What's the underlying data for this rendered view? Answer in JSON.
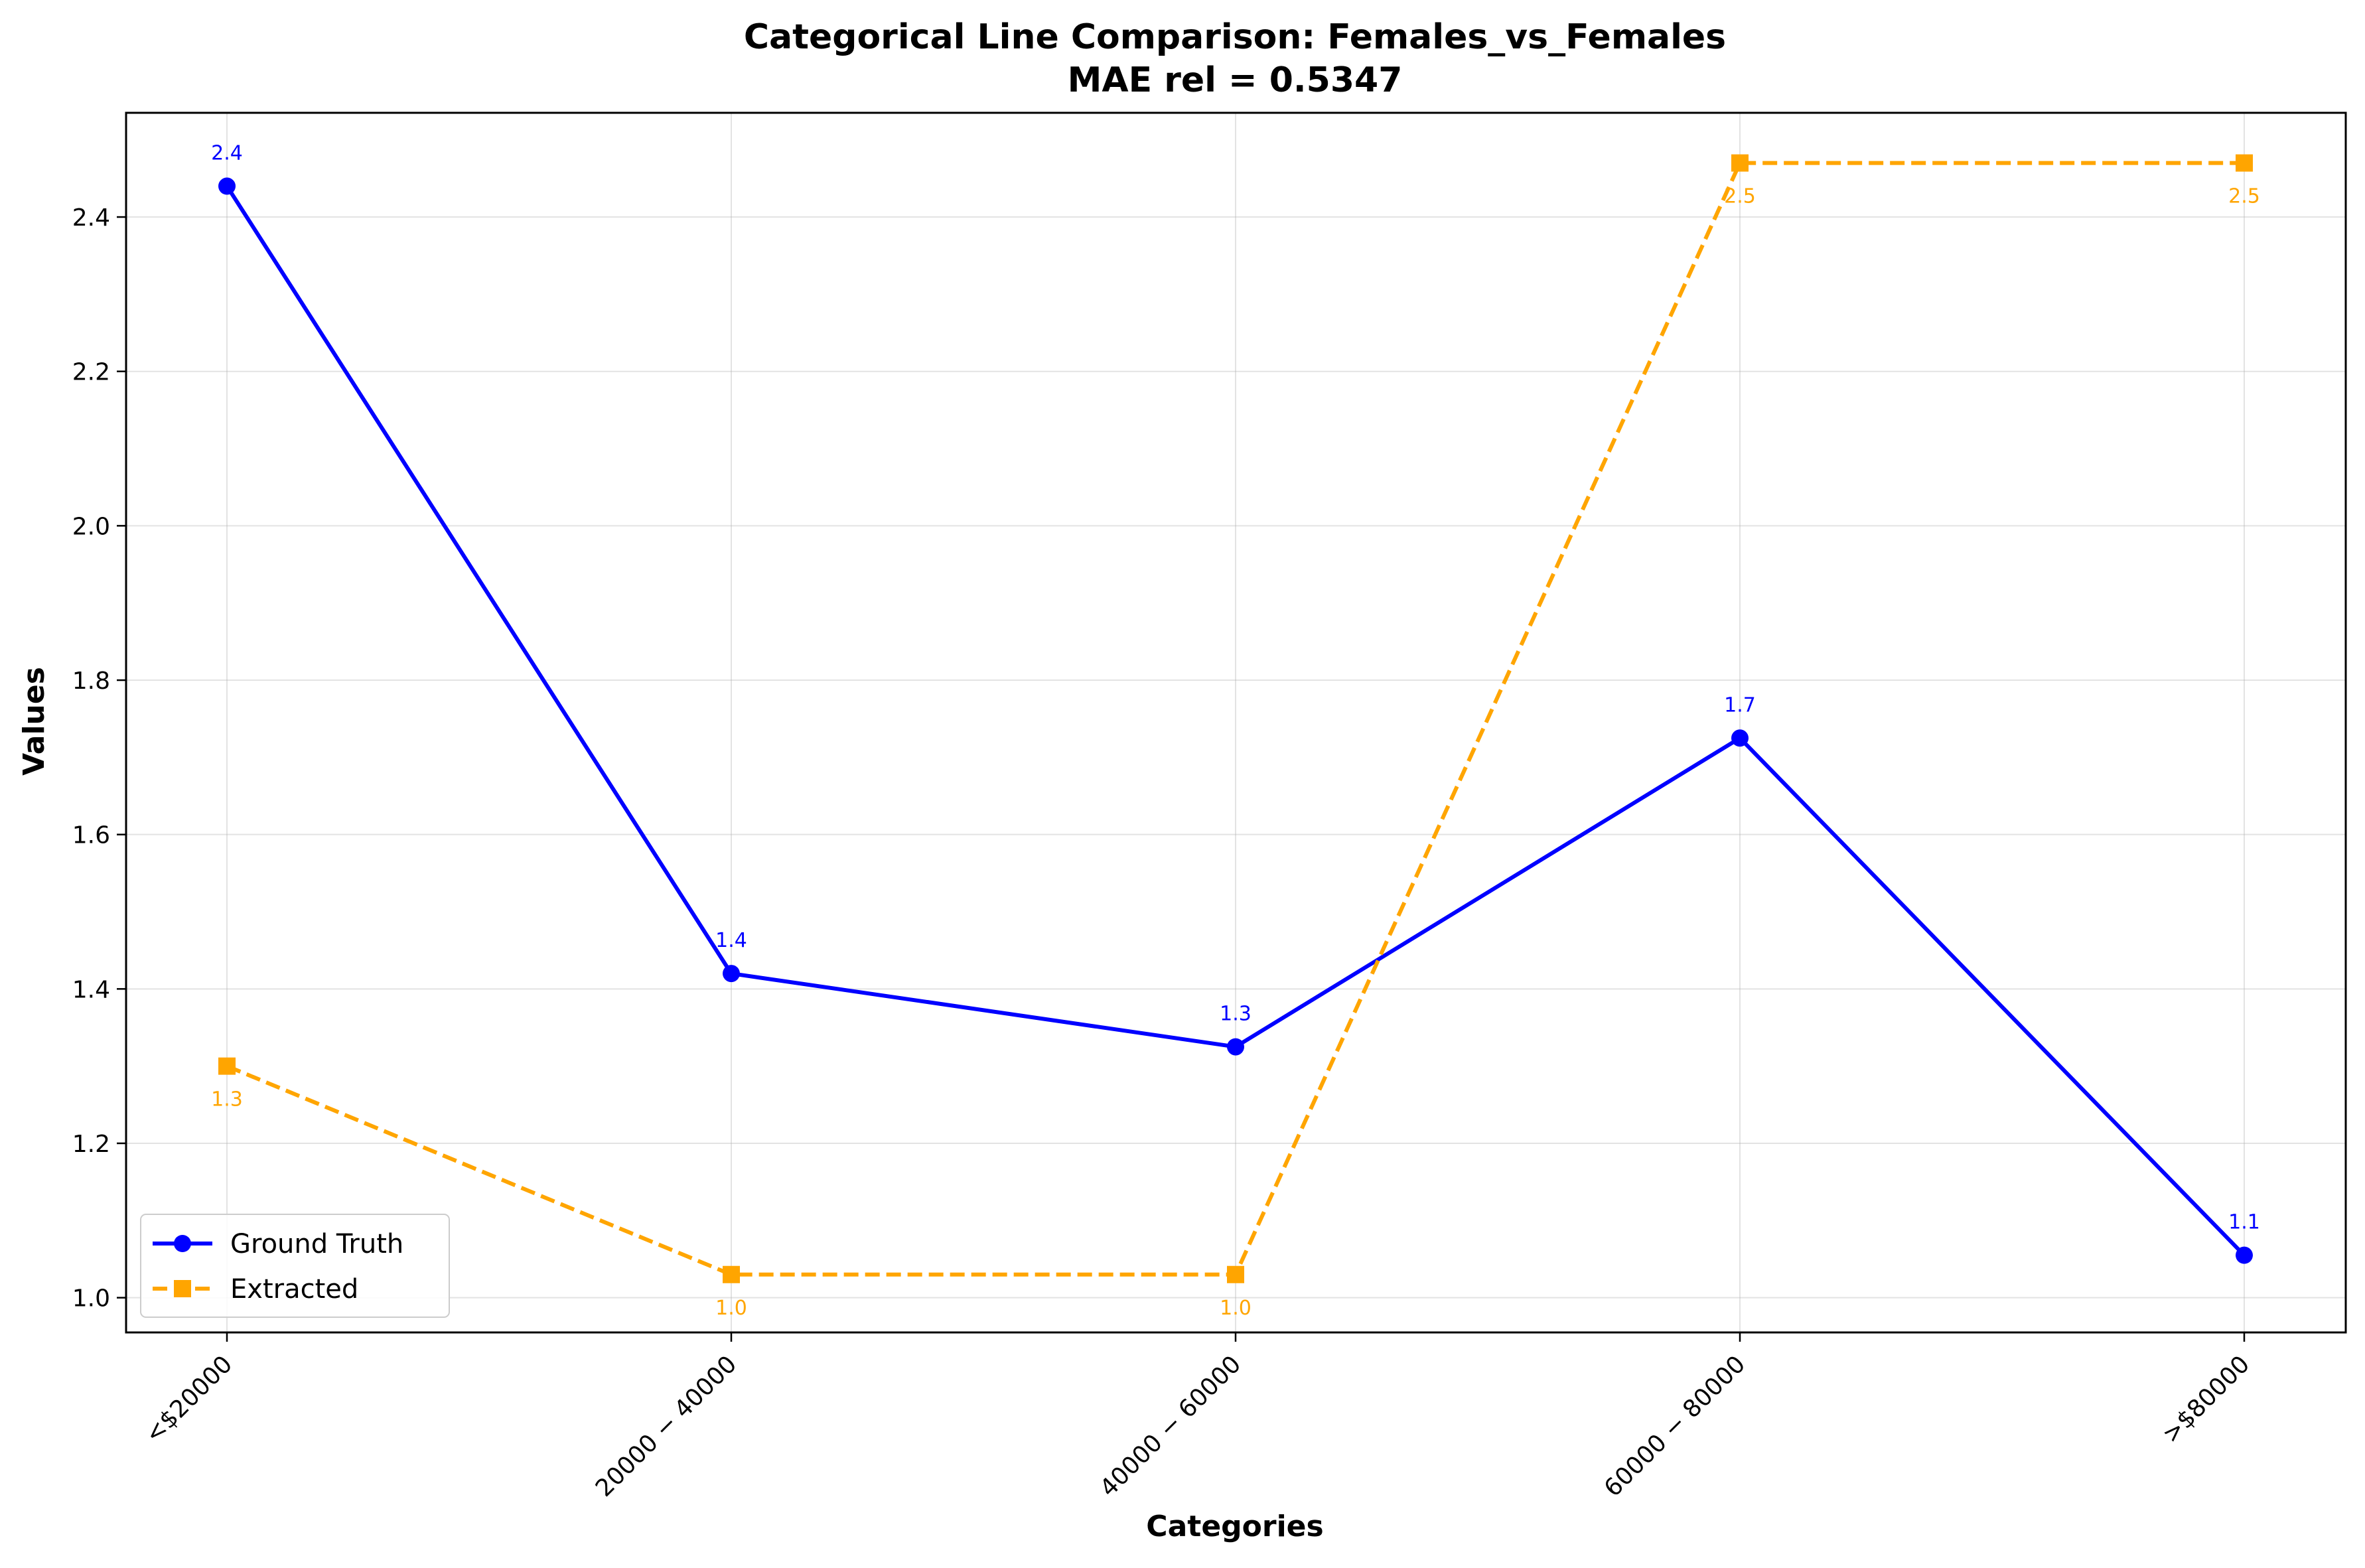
{
  "chart_data": {
    "type": "line",
    "title": "Categorical Line Comparison: Females_vs_Females",
    "subtitle": "MAE rel = 0.5347",
    "xlabel": "Categories",
    "ylabel": "Values",
    "categories": [
      "<$20000",
      "$20000 - $40000",
      "$40000 - $60000",
      "$60000 - $80000",
      ">$80000"
    ],
    "category_tick_labels": [
      "<$20000",
      "20000 − 40000",
      "40000 − 60000",
      "60000 − 80000",
      ">$80000"
    ],
    "ylim": [
      0.955,
      2.535
    ],
    "yticks": [
      1.0,
      1.2,
      1.4,
      1.6,
      1.8,
      2.0,
      2.2,
      2.4
    ],
    "ytick_labels": [
      "1.0",
      "1.2",
      "1.4",
      "1.6",
      "1.8",
      "2.0",
      "2.2",
      "2.4"
    ],
    "grid": true,
    "legend_position": "lower-left",
    "series": [
      {
        "name": "Ground Truth",
        "values": [
          2.44,
          1.42,
          1.325,
          1.725,
          1.055
        ],
        "labels": [
          "2.4",
          "1.4",
          "1.3",
          "1.7",
          "1.1"
        ],
        "label_position": "above",
        "color": "#0000ff",
        "line_style": "solid",
        "marker": "circle"
      },
      {
        "name": "Extracted",
        "values": [
          1.3,
          1.03,
          1.03,
          2.47,
          2.47
        ],
        "labels": [
          "1.3",
          "1.0",
          "1.0",
          "2.5",
          "2.5"
        ],
        "label_position": "below",
        "color": "#ffa500",
        "line_style": "dashed",
        "marker": "square"
      }
    ]
  }
}
